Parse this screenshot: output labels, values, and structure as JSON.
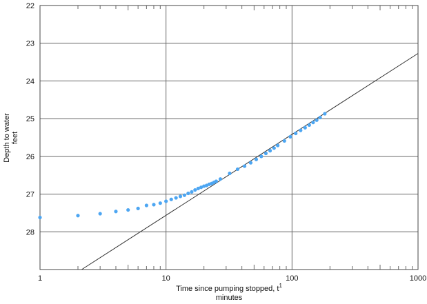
{
  "chart_data": {
    "type": "scatter",
    "title": "",
    "xlabel": "Time since pumping stopped, t",
    "xlabel_superscript": "1",
    "xlabel_units": "minutes",
    "ylabel": "Depth to water",
    "ylabel_units": "feet",
    "x_scale": "log",
    "xlim": [
      1,
      1000
    ],
    "ylim": [
      22,
      29
    ],
    "y_inverted": true,
    "x_tick_labels": [
      {
        "value": 1,
        "label": "1"
      },
      {
        "value": 10,
        "label": "10"
      },
      {
        "value": 100,
        "label": "100"
      },
      {
        "value": 1000,
        "label": "1000"
      }
    ],
    "y_tick_labels": [
      {
        "value": 22,
        "label": "22"
      },
      {
        "value": 23,
        "label": "23"
      },
      {
        "value": 24,
        "label": "24"
      },
      {
        "value": 25,
        "label": "25"
      },
      {
        "value": 26,
        "label": "26"
      },
      {
        "value": 27,
        "label": "27"
      },
      {
        "value": 28,
        "label": "28"
      }
    ],
    "grid": {
      "x_major": true,
      "y_major": true
    },
    "colors": {
      "points": "#4da6f2",
      "line": "#333333",
      "grid": "#666666",
      "frame": "#444444"
    },
    "series": [
      {
        "points": [
          [
            1,
            27.62
          ],
          [
            2,
            27.57
          ],
          [
            3,
            27.52
          ],
          [
            4,
            27.46
          ],
          [
            5,
            27.42
          ],
          [
            6,
            27.38
          ],
          [
            7,
            27.3
          ],
          [
            8,
            27.28
          ],
          [
            9,
            27.24
          ],
          [
            10,
            27.19
          ],
          [
            11,
            27.14
          ],
          [
            12,
            27.1
          ],
          [
            13,
            27.06
          ],
          [
            14,
            27.03
          ],
          [
            15,
            26.98
          ],
          [
            16,
            26.94
          ],
          [
            17,
            26.89
          ],
          [
            18,
            26.85
          ],
          [
            19,
            26.82
          ],
          [
            20,
            26.79
          ],
          [
            21,
            26.77
          ],
          [
            22,
            26.74
          ],
          [
            23,
            26.72
          ],
          [
            24,
            26.69
          ],
          [
            25,
            26.66
          ],
          [
            27,
            26.6
          ],
          [
            32,
            26.45
          ],
          [
            37,
            26.34
          ],
          [
            42,
            26.26
          ],
          [
            47,
            26.17
          ],
          [
            52,
            26.08
          ],
          [
            57,
            26.0
          ],
          [
            62,
            25.92
          ],
          [
            67,
            25.85
          ],
          [
            72,
            25.78
          ],
          [
            77,
            25.71
          ],
          [
            87,
            25.59
          ],
          [
            97,
            25.48
          ],
          [
            107,
            25.39
          ],
          [
            117,
            25.31
          ],
          [
            127,
            25.24
          ],
          [
            137,
            25.17
          ],
          [
            147,
            25.1
          ],
          [
            157,
            25.04
          ],
          [
            167,
            24.97
          ],
          [
            182,
            24.87
          ]
        ]
      }
    ],
    "fit_line": {
      "x": [
        2.14,
        1000
      ],
      "y": [
        29.0,
        23.27
      ]
    }
  }
}
